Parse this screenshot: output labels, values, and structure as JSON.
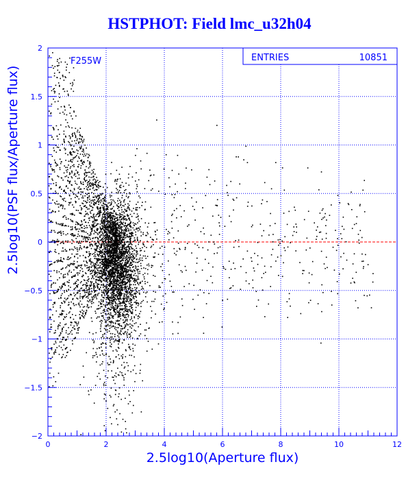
{
  "title": "HSTPHOT: Field lmc_u32h04",
  "colors": {
    "background": "#ffffff",
    "axes": "#0000ff",
    "text": "#0000ff",
    "points": "#000000",
    "reference_line": "#ff0000"
  },
  "chart_data": {
    "type": "scatter",
    "title": "HSTPHOT: Field lmc_u32h04",
    "xlabel": "2.5log10(Aperture flux)",
    "ylabel": "2.5log10(PSF flux/Aperture flux)",
    "xlim": [
      0,
      12
    ],
    "ylim": [
      -2,
      2
    ],
    "xticks": [
      0,
      2,
      4,
      6,
      8,
      10,
      12
    ],
    "yticks": [
      -2,
      -1.5,
      -1,
      -0.5,
      0,
      0.5,
      1,
      1.5,
      2
    ],
    "grid": true,
    "grid_style": "dotted",
    "reference_line": {
      "y": 0,
      "style": "dashed",
      "color": "#ff0000"
    },
    "annotation": "F255W",
    "stats": {
      "label": "ENTRIES",
      "value": "10851"
    },
    "point_count": 10851,
    "distribution": "dense fan of discrete arcs for x < 2.5 spanning y from -2 to +1.9; compact cloud centered near x ≈ 2.4, y ≈ 0; sparse scatter of faint tails extending to x ≈ 11 with |y| mostly below 0.7"
  }
}
